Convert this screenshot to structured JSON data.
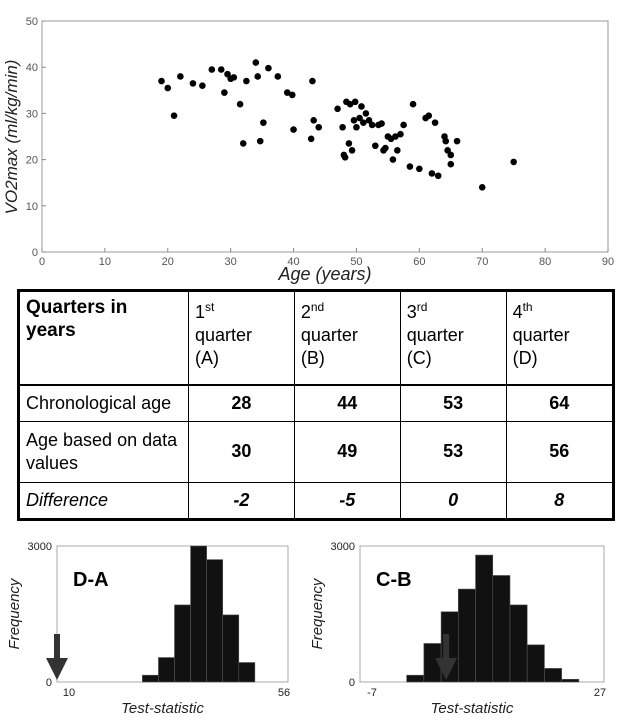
{
  "chart_data": [
    {
      "type": "scatter",
      "xlabel": "Age (years)",
      "ylabel": "VO2max (ml/kg/min)",
      "xlim": [
        0,
        90
      ],
      "ylim": [
        0,
        50
      ],
      "xticks": [
        "0",
        "10",
        "20",
        "30",
        "40",
        "50",
        "60",
        "70",
        "80",
        "90"
      ],
      "yticks": [
        "0",
        "10",
        "20",
        "30",
        "40",
        "50"
      ],
      "grid": false,
      "points": [
        [
          19,
          37
        ],
        [
          20,
          35.5
        ],
        [
          21,
          29.5
        ],
        [
          22,
          38
        ],
        [
          24,
          36.5
        ],
        [
          25.5,
          36
        ],
        [
          27,
          39.5
        ],
        [
          28.5,
          39.5
        ],
        [
          29,
          34.5
        ],
        [
          29.5,
          38.5
        ],
        [
          30,
          37.5
        ],
        [
          30.5,
          37.8
        ],
        [
          31.5,
          32
        ],
        [
          32,
          23.5
        ],
        [
          32.5,
          37
        ],
        [
          34,
          41
        ],
        [
          34.3,
          38
        ],
        [
          34.7,
          24
        ],
        [
          35.2,
          28
        ],
        [
          36,
          39.8
        ],
        [
          37.5,
          38
        ],
        [
          39,
          34.5
        ],
        [
          39.8,
          34
        ],
        [
          40,
          26.5
        ],
        [
          42.8,
          24.5
        ],
        [
          43,
          37
        ],
        [
          43.2,
          28.5
        ],
        [
          44,
          27
        ],
        [
          47,
          31
        ],
        [
          47.8,
          27
        ],
        [
          48,
          21
        ],
        [
          48.2,
          20.5
        ],
        [
          48.4,
          32.5
        ],
        [
          48.8,
          23.5
        ],
        [
          49,
          32
        ],
        [
          49.3,
          22
        ],
        [
          49.6,
          28.5
        ],
        [
          49.8,
          32.5
        ],
        [
          50,
          27
        ],
        [
          50.5,
          29
        ],
        [
          50.8,
          31.5
        ],
        [
          51.1,
          28
        ],
        [
          51.5,
          30
        ],
        [
          52,
          28.5
        ],
        [
          52.5,
          27.5
        ],
        [
          53,
          23
        ],
        [
          53.5,
          27.5
        ],
        [
          54,
          27.8
        ],
        [
          54.3,
          22
        ],
        [
          54.6,
          22.5
        ],
        [
          55,
          25
        ],
        [
          55.5,
          24.5
        ],
        [
          55.8,
          20
        ],
        [
          56.2,
          25
        ],
        [
          56.5,
          22
        ],
        [
          57,
          25.5
        ],
        [
          57.5,
          27.5
        ],
        [
          58.5,
          18.5
        ],
        [
          59,
          32
        ],
        [
          60,
          18
        ],
        [
          61,
          29
        ],
        [
          61.5,
          29.5
        ],
        [
          62,
          17
        ],
        [
          62.5,
          28
        ],
        [
          63,
          16.5
        ],
        [
          64,
          25
        ],
        [
          64.2,
          24
        ],
        [
          64.5,
          22
        ],
        [
          65,
          19
        ],
        [
          65,
          21
        ],
        [
          66,
          24
        ],
        [
          70,
          14
        ],
        [
          75,
          19.5
        ]
      ]
    },
    {
      "type": "bar",
      "title": "D-A",
      "xlabel": "Test-statistic",
      "ylabel": "Frequency",
      "xtick_left": "10",
      "xtick_right": "56",
      "ytick_top": "3000",
      "ytick_bottom": "0",
      "ylim": [
        0,
        3000
      ],
      "xlim": [
        10,
        56
      ],
      "bin_edges": [
        27,
        30.2,
        33.4,
        36.6,
        39.8,
        43,
        46.2,
        49.4
      ],
      "values": [
        150,
        540,
        1700,
        3000,
        2700,
        1480,
        430,
        100
      ],
      "arrow_at": 10
    },
    {
      "type": "bar",
      "title": "C-B",
      "xlabel": "Test-statistic",
      "ylabel": "Frequency",
      "xtick_left": "-7",
      "xtick_right": "27",
      "ytick_top": "3000",
      "ytick_bottom": "0",
      "ylim": [
        0,
        3000
      ],
      "xlim": [
        -7,
        27
      ],
      "bin_edges": [
        -0.5,
        1.9,
        4.3,
        6.7,
        9.1,
        11.5,
        13.9,
        16.3,
        18.7,
        21.1,
        23.5
      ],
      "values": [
        150,
        850,
        1550,
        2050,
        2800,
        2350,
        1700,
        820,
        300,
        60
      ],
      "arrow_at": 5
    }
  ],
  "table": {
    "header": {
      "label": "Quarters in years",
      "q1_line1": "1",
      "q1_sup": "st",
      "q1_line2": "quarter",
      "q1_line3": "(A)",
      "q2_line1": "2",
      "q2_sup": "nd",
      "q2_line2": "quarter",
      "q2_line3": "(B)",
      "q3_line1": "3",
      "q3_sup": "rd",
      "q3_line2": "quarter",
      "q3_line3": "(C)",
      "q4_line1": "4",
      "q4_sup": "th",
      "q4_line2": "quarter",
      "q4_line3": "(D)"
    },
    "rows": [
      {
        "label": "Chronological age",
        "values": [
          "28",
          "44",
          "53",
          "64"
        ]
      },
      {
        "label": "Age based on data values",
        "values": [
          "30",
          "49",
          "53",
          "56"
        ]
      },
      {
        "label": "Difference",
        "values": [
          "-2",
          "-5",
          "0",
          "8"
        ]
      }
    ]
  }
}
